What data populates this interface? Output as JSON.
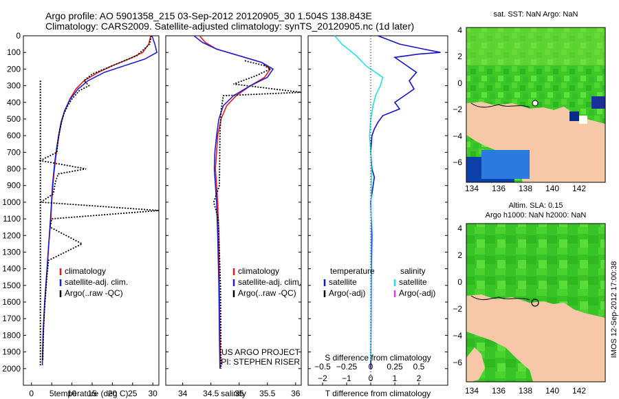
{
  "header": {
    "line1": "Argo profile: AO 5901358_215 03-Sep-2012 20120905_30 1.504S 138.843E",
    "line2": "Climatology: CARS2009. Satellite-adjusted climatology: synTS_20120905.nc (1d later)"
  },
  "colors": {
    "climatology": "#e31a1c",
    "satellite_adj": "#1d1dd6",
    "argo": "#000000",
    "temp_satellite": "#1212c8",
    "sal_satellite": "#22e0e8",
    "sal_argo_adj": "#e040e0",
    "land": "#f6c8a8",
    "ocean_green": "#3cc828"
  },
  "chart_data": [
    {
      "type": "line",
      "panel": "temperature",
      "xlabel": "temperature (deg C)",
      "ylabel": "",
      "xlim": [
        -2,
        31.5
      ],
      "ylim": [
        2100,
        0
      ],
      "xticks": [
        "0",
        "5",
        "10",
        "15",
        "20",
        "25",
        "30"
      ],
      "yticks": [
        "0",
        "100",
        "200",
        "300",
        "400",
        "500",
        "600",
        "700",
        "800",
        "900",
        "1000",
        "1100",
        "1200",
        "1300",
        "1400",
        "1500",
        "1600",
        "1700",
        "1800",
        "1900",
        "2000"
      ],
      "legend": [
        "climatology",
        "satellite-adj. clim.",
        "Argo(..raw -QC)"
      ],
      "legend_position": "lower-center",
      "series": [
        {
          "name": "climatology",
          "x": [
            29.5,
            29,
            27.5,
            24,
            20,
            16.5,
            13,
            11,
            9.5,
            8.2,
            7.4,
            6.8,
            6.3,
            5.9,
            5.6,
            5.3,
            5.0,
            4.8,
            4.3,
            3.9,
            3.6,
            3.3,
            3.1,
            2.9,
            2.8,
            2.75
          ],
          "y": [
            0,
            50,
            100,
            140,
            180,
            220,
            270,
            320,
            380,
            450,
            520,
            600,
            680,
            750,
            820,
            900,
            1000,
            1100,
            1250,
            1400,
            1500,
            1600,
            1700,
            1800,
            1900,
            1950
          ]
        },
        {
          "name": "satellite-adj. clim.",
          "x": [
            29.8,
            30.5,
            31,
            28,
            23,
            18,
            14,
            11.5,
            9.6,
            8.2,
            7.3,
            6.7,
            6.2,
            5.8,
            5.5,
            5.2,
            4.95,
            4.7,
            4.25,
            3.85,
            3.55,
            3.25,
            3.05,
            2.85,
            2.75,
            2.7
          ],
          "y": [
            0,
            50,
            100,
            140,
            180,
            220,
            270,
            320,
            380,
            450,
            520,
            600,
            680,
            750,
            820,
            900,
            1000,
            1100,
            1250,
            1400,
            1500,
            1600,
            1700,
            1800,
            1900,
            1980
          ]
        },
        {
          "name": "Argo(..raw -QC)",
          "x": [
            29.6,
            29.2,
            26,
            22,
            18,
            15,
            13,
            14.2,
            11.8,
            10,
            9,
            8,
            7.4,
            6.9,
            6.5,
            6.3,
            2.2,
            13.5,
            6.6,
            5.9,
            5.4,
            2.3,
            31.5,
            5.0,
            4.6,
            12.5,
            4.2,
            3.8,
            3.5,
            3.2,
            3.0,
            2.9,
            2.8
          ],
          "y": [
            0,
            50,
            120,
            160,
            200,
            230,
            270,
            300,
            330,
            380,
            420,
            470,
            520,
            580,
            640,
            700,
            750,
            800,
            830,
            880,
            950,
            1000,
            1050,
            1100,
            1150,
            1250,
            1350,
            1450,
            1550,
            1650,
            1750,
            1850,
            1950
          ]
        },
        {
          "name": "argo-reference",
          "x": [
            2.2,
            2.2,
            2.2,
            2.2,
            2.2,
            2.2,
            2.2,
            2.2
          ],
          "y": [
            270,
            500,
            800,
            1000,
            1200,
            1500,
            1800,
            1980
          ]
        }
      ]
    },
    {
      "type": "line",
      "panel": "salinity",
      "xlabel": "salinity",
      "ylabel": "",
      "xlim": [
        33.7,
        36.1
      ],
      "ylim": [
        2100,
        0
      ],
      "xticks": [
        "34",
        "34.5",
        "35",
        "35.5",
        "36"
      ],
      "legend": [
        "climatology",
        "satellite-adj. clim.",
        "Argo(..raw -QC)"
      ],
      "legend_position": "lower-right",
      "annotations": [
        "US ARGO PROJECT",
        "PI: STEPHEN RISER"
      ],
      "series": [
        {
          "name": "climatology",
          "x": [
            34.3,
            34.4,
            34.6,
            35.0,
            35.4,
            35.55,
            35.45,
            35.2,
            34.95,
            34.78,
            34.68,
            34.62,
            34.6,
            34.58,
            34.6,
            34.62,
            34.64,
            34.65,
            34.66,
            34.67
          ],
          "y": [
            0,
            40,
            80,
            120,
            160,
            200,
            250,
            300,
            360,
            420,
            500,
            600,
            700,
            800,
            900,
            1000,
            1200,
            1500,
            1800,
            2000
          ]
        },
        {
          "name": "satellite-adj. clim.",
          "x": [
            34.2,
            34.35,
            34.6,
            35.0,
            35.4,
            35.6,
            35.5,
            35.2,
            34.9,
            34.72,
            34.64,
            34.6,
            34.57,
            34.56,
            34.58,
            34.6,
            34.62,
            34.64,
            34.65,
            34.66
          ],
          "y": [
            0,
            40,
            80,
            120,
            160,
            200,
            250,
            300,
            360,
            420,
            500,
            600,
            700,
            800,
            900,
            1000,
            1200,
            1500,
            1800,
            2000
          ]
        },
        {
          "name": "Argo(..raw -QC)",
          "x": [
            35.1,
            35.45,
            35.55,
            35.3,
            34.9,
            36.1,
            34.72,
            34.68,
            34.66,
            34.65,
            34.55,
            34.63,
            34.67,
            34.68
          ],
          "y": [
            150,
            180,
            200,
            240,
            290,
            340,
            360,
            450,
            600,
            900,
            1000,
            1100,
            1500,
            2000
          ]
        }
      ]
    },
    {
      "type": "line",
      "panel": "difference",
      "xlabel": "T difference from climatology",
      "xlabel2": "S difference from climatology",
      "xlim": [
        -2.6,
        3.2
      ],
      "ylim": [
        2100,
        0
      ],
      "xticks": [
        "−2",
        "−1",
        "0",
        "1",
        "2"
      ],
      "xticks2": [
        "−0.5",
        "−0.25",
        "0",
        "0.25",
        "0.5"
      ],
      "legend": [
        "temperature",
        "satellite",
        "Argo(-adj)",
        "salinity",
        "satellite",
        "Argo(-adj)"
      ],
      "legend_position": "lower-center",
      "series": [
        {
          "name": "temperature satellite",
          "x": [
            0.3,
            1.2,
            2.2,
            2.9,
            2.0,
            1.0,
            1.5,
            1.9,
            1.6,
            1.8,
            1.4,
            1.0,
            1.2,
            0.5,
            0.3,
            0.15,
            0.05,
            0.0,
            0.05,
            0.15,
            0.1,
            0.0,
            0.05,
            0.03,
            0.02,
            0.01,
            0.0
          ],
          "y": [
            0,
            50,
            80,
            100,
            110,
            130,
            180,
            220,
            270,
            320,
            360,
            400,
            440,
            480,
            520,
            560,
            600,
            700,
            800,
            850,
            900,
            1000,
            1200,
            1400,
            1600,
            1800,
            2000
          ]
        },
        {
          "name": "salinity satellite",
          "x": [
            -1.5,
            -1.2,
            -0.6,
            -0.2,
            0.2,
            0.5,
            0.4,
            0.2,
            0.1,
            0.0,
            -0.05,
            0.0,
            0.03,
            0.02,
            0.01,
            0.0
          ],
          "y": [
            0,
            50,
            120,
            180,
            220,
            250,
            300,
            360,
            420,
            500,
            600,
            700,
            800,
            1000,
            1500,
            1950
          ]
        },
        {
          "name": "zero-line",
          "x": [
            0,
            0
          ],
          "y": [
            0,
            2100
          ]
        }
      ]
    }
  ],
  "map_top": {
    "title": "sat. SST: NaN Argo: NaN",
    "xticks": [
      "134",
      "136",
      "138",
      "140",
      "142"
    ],
    "yticks": [
      "4",
      "2",
      "0",
      "−2",
      "−4",
      "−6"
    ]
  },
  "map_bottom": {
    "title1": "Altim. SLA: 0.15",
    "title2": "Argo h1000: NaN h2000: NaN",
    "xticks": [
      "134",
      "136",
      "138",
      "140",
      "142"
    ],
    "yticks": [
      "4",
      "2",
      "0",
      "−2",
      "−4",
      "−6"
    ]
  },
  "watermark": "IMOS 12-Sep-2012 17:00:38"
}
